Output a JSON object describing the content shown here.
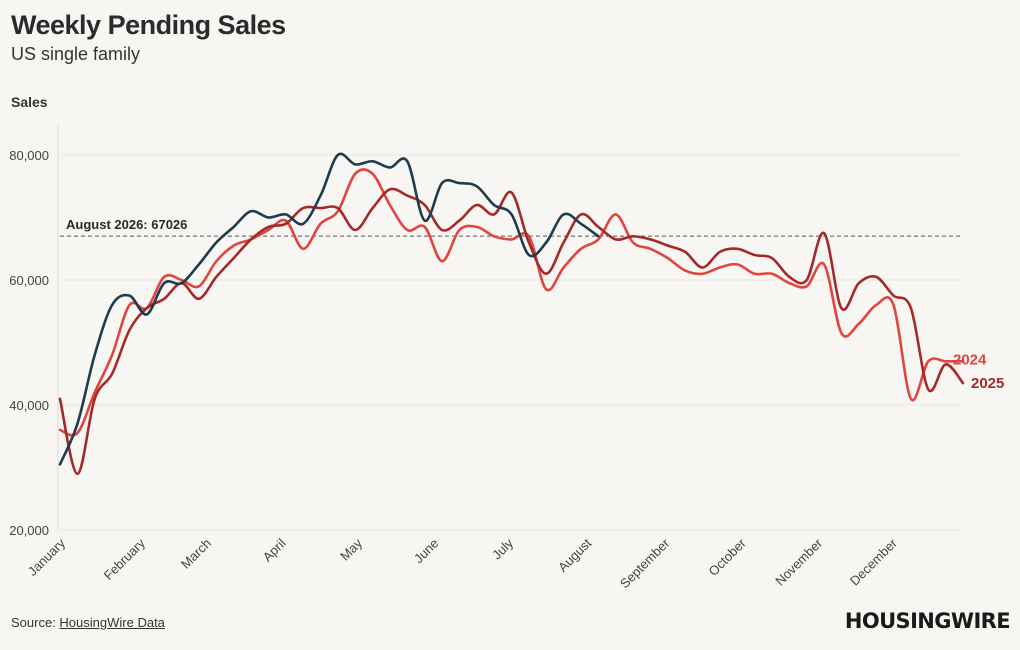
{
  "header": {
    "title": "Weekly Pending Sales",
    "subtitle": "US single family",
    "ylabel": "Sales"
  },
  "footer": {
    "source_prefix": "Source: ",
    "source_link": "HousingWire Data",
    "logo": "HOUSINGWIRE"
  },
  "colors": {
    "background": "#f8f6f2",
    "series_2024": "#e04540",
    "series_2025": "#a42a2a",
    "series_2026": "#1d3c4f",
    "grid": "#e8e6e2",
    "refline": "#555555"
  },
  "chart_data": {
    "type": "line",
    "title": "Weekly Pending Sales",
    "subtitle": "US single family",
    "ylabel": "Sales",
    "ylim": [
      20000,
      85000
    ],
    "xlim": [
      1,
      53
    ],
    "yticks": [
      20000,
      40000,
      60000,
      80000
    ],
    "ytick_labels": [
      "20,000",
      "40,000",
      "60,000",
      "80,000"
    ],
    "month_ticks": [
      {
        "label": "January",
        "week": 1
      },
      {
        "label": "February",
        "week": 5.6
      },
      {
        "label": "March",
        "week": 9.4
      },
      {
        "label": "April",
        "week": 13.7
      },
      {
        "label": "May",
        "week": 18.1
      },
      {
        "label": "June",
        "week": 22.5
      },
      {
        "label": "July",
        "week": 26.8
      },
      {
        "label": "August",
        "week": 31.3
      },
      {
        "label": "September",
        "week": 35.8
      },
      {
        "label": "October",
        "week": 40.2
      },
      {
        "label": "November",
        "week": 44.6
      },
      {
        "label": "December",
        "week": 48.9
      }
    ],
    "reference_line": {
      "label": "August 2026: 67026",
      "value": 67026
    },
    "grid": true,
    "series": [
      {
        "name": "2024",
        "label_visible": true,
        "values": [
          [
            1,
            36000
          ],
          [
            2,
            35500
          ],
          [
            3,
            42000
          ],
          [
            4,
            48000
          ],
          [
            5,
            56000
          ],
          [
            6,
            55500
          ],
          [
            7,
            60500
          ],
          [
            8,
            60000
          ],
          [
            9,
            59000
          ],
          [
            10,
            63000
          ],
          [
            11,
            65500
          ],
          [
            12,
            66500
          ],
          [
            13,
            68000
          ],
          [
            14,
            69500
          ],
          [
            15,
            65000
          ],
          [
            16,
            69000
          ],
          [
            17,
            71000
          ],
          [
            18,
            77000
          ],
          [
            19,
            77000
          ],
          [
            20,
            72000
          ],
          [
            21,
            68000
          ],
          [
            22,
            68500
          ],
          [
            23,
            63000
          ],
          [
            24,
            68000
          ],
          [
            25,
            68500
          ],
          [
            26,
            67000
          ],
          [
            27,
            66500
          ],
          [
            28,
            67000
          ],
          [
            29,
            58500
          ],
          [
            30,
            62000
          ],
          [
            31,
            65000
          ],
          [
            32,
            66500
          ],
          [
            33,
            70500
          ],
          [
            34,
            66000
          ],
          [
            35,
            65000
          ],
          [
            36,
            63500
          ],
          [
            37,
            61500
          ],
          [
            38,
            61000
          ],
          [
            39,
            62000
          ],
          [
            40,
            62500
          ],
          [
            41,
            61000
          ],
          [
            42,
            61000
          ],
          [
            43,
            59500
          ],
          [
            44,
            59000
          ],
          [
            45,
            62500
          ],
          [
            46,
            51500
          ],
          [
            47,
            53000
          ],
          [
            48,
            56000
          ],
          [
            49,
            56000
          ],
          [
            50,
            41000
          ],
          [
            51,
            47000
          ],
          [
            52,
            47000
          ],
          [
            53,
            47000
          ]
        ]
      },
      {
        "name": "2025",
        "label_visible": true,
        "values": [
          [
            1,
            41000
          ],
          [
            2,
            29000
          ],
          [
            3,
            41000
          ],
          [
            4,
            45000
          ],
          [
            5,
            52000
          ],
          [
            6,
            55500
          ],
          [
            7,
            57000
          ],
          [
            8,
            59500
          ],
          [
            9,
            57000
          ],
          [
            10,
            60500
          ],
          [
            11,
            63500
          ],
          [
            12,
            66500
          ],
          [
            13,
            68500
          ],
          [
            14,
            69000
          ],
          [
            15,
            71500
          ],
          [
            16,
            71500
          ],
          [
            17,
            71500
          ],
          [
            18,
            68000
          ],
          [
            19,
            71500
          ],
          [
            20,
            74500
          ],
          [
            21,
            73500
          ],
          [
            22,
            72000
          ],
          [
            23,
            68000
          ],
          [
            24,
            69500
          ],
          [
            25,
            72000
          ],
          [
            26,
            70500
          ],
          [
            27,
            74000
          ],
          [
            28,
            66000
          ],
          [
            29,
            61000
          ],
          [
            30,
            66000
          ],
          [
            31,
            70500
          ],
          [
            32,
            68500
          ],
          [
            33,
            66500
          ],
          [
            34,
            67000
          ],
          [
            35,
            66500
          ],
          [
            36,
            65500
          ],
          [
            37,
            64500
          ],
          [
            38,
            62000
          ],
          [
            39,
            64500
          ],
          [
            40,
            65000
          ],
          [
            41,
            64000
          ],
          [
            42,
            63500
          ],
          [
            43,
            60500
          ],
          [
            44,
            60000
          ],
          [
            45,
            67500
          ],
          [
            46,
            55500
          ],
          [
            47,
            59500
          ],
          [
            48,
            60500
          ],
          [
            49,
            57500
          ],
          [
            50,
            55500
          ],
          [
            51,
            42500
          ],
          [
            52,
            46500
          ],
          [
            53,
            43500
          ]
        ]
      },
      {
        "name": "",
        "label_visible": false,
        "values": [
          [
            1,
            30500
          ],
          [
            2,
            37000
          ],
          [
            3,
            48000
          ],
          [
            4,
            56000
          ],
          [
            5,
            57500
          ],
          [
            6,
            54500
          ],
          [
            7,
            59500
          ],
          [
            8,
            59500
          ],
          [
            9,
            62500
          ],
          [
            10,
            66000
          ],
          [
            11,
            68500
          ],
          [
            12,
            71000
          ],
          [
            13,
            70000
          ],
          [
            14,
            70500
          ],
          [
            15,
            69000
          ],
          [
            16,
            73500
          ],
          [
            17,
            80000
          ],
          [
            18,
            78500
          ],
          [
            19,
            79000
          ],
          [
            20,
            78000
          ],
          [
            21,
            79000
          ],
          [
            22,
            69500
          ],
          [
            23,
            75500
          ],
          [
            24,
            75500
          ],
          [
            25,
            75000
          ],
          [
            26,
            72000
          ],
          [
            27,
            70500
          ],
          [
            28,
            64000
          ],
          [
            29,
            66000
          ],
          [
            30,
            70500
          ],
          [
            31,
            69000
          ],
          [
            32,
            67000
          ]
        ]
      }
    ]
  }
}
